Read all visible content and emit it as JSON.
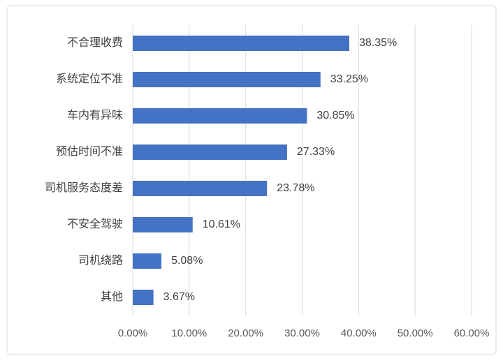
{
  "chart_data": {
    "type": "bar",
    "orientation": "horizontal",
    "categories": [
      "不合理收费",
      "系统定位不准",
      "车内有异味",
      "预估时间不准",
      "司机服务态度差",
      "不安全驾驶",
      "司机绕路",
      "其他"
    ],
    "values": [
      38.35,
      33.25,
      30.85,
      27.33,
      23.78,
      10.61,
      5.08,
      3.67
    ],
    "value_labels": [
      "38.35%",
      "33.25%",
      "30.85%",
      "27.33%",
      "23.78%",
      "10.61%",
      "5.08%",
      "3.67%"
    ],
    "color": "#4472c4",
    "xlim": [
      0,
      60
    ],
    "xticks": [
      {
        "value": 0,
        "label": "0.00%"
      },
      {
        "value": 10,
        "label": "10.00%"
      },
      {
        "value": 20,
        "label": "20.00%"
      },
      {
        "value": 30,
        "label": "30.00%"
      },
      {
        "value": 40,
        "label": "40.00%"
      },
      {
        "value": 50,
        "label": "50.00%"
      },
      {
        "value": 60,
        "label": "60.00%"
      }
    ],
    "grid": true
  }
}
